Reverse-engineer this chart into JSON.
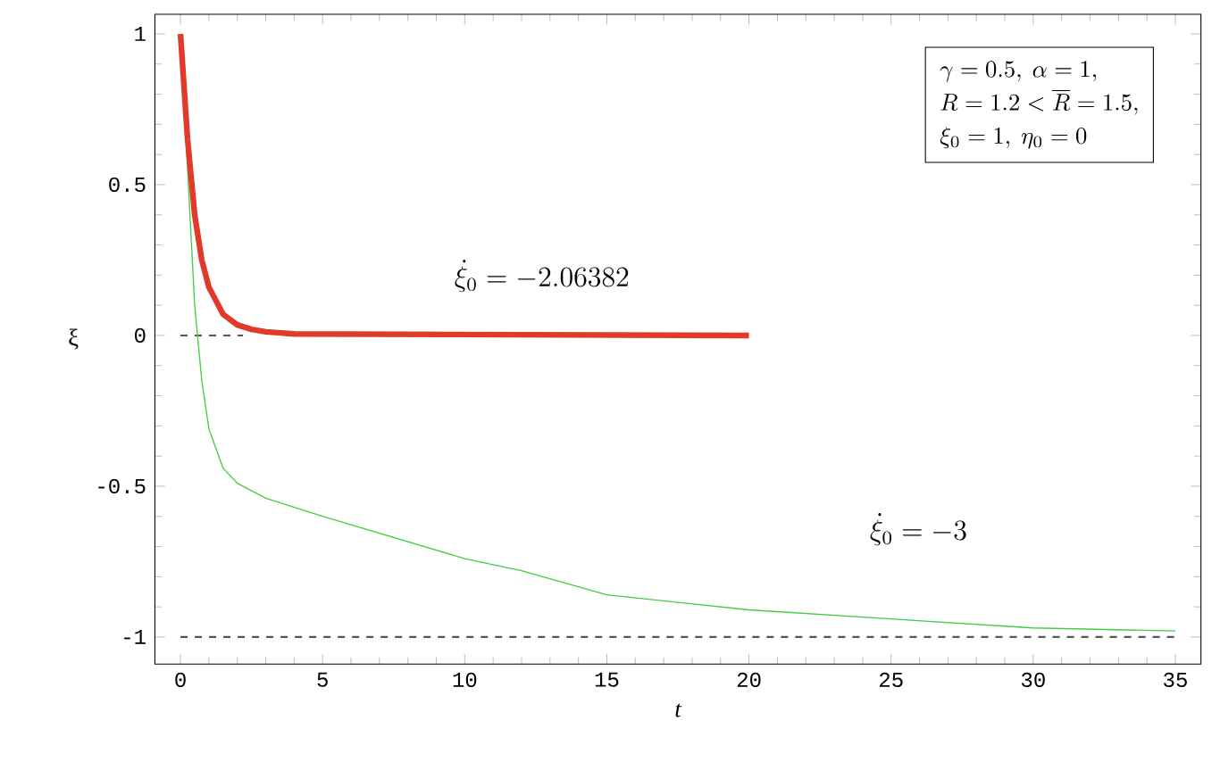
{
  "chart_data": {
    "type": "line",
    "xlabel": "t",
    "ylabel": "ξ",
    "xlim": [
      -0.9,
      35.9
    ],
    "ylim": [
      -1.09,
      1.065
    ],
    "xticks": [
      0,
      5,
      10,
      15,
      20,
      25,
      30,
      35
    ],
    "yticks": [
      -1,
      -0.5,
      0,
      0.5,
      1
    ],
    "grid": false,
    "legend": false,
    "marker": "none",
    "series": [
      {
        "line_style": "dashed",
        "color": "#555555",
        "x": [
          0,
          2.2
        ],
        "values": [
          0,
          0
        ]
      },
      {
        "line_style": "dashed",
        "color": "#555555",
        "x": [
          0,
          35
        ],
        "values": [
          -1,
          -1
        ]
      },
      {
        "line_style": "solid",
        "color": "#44cc44",
        "x": [
          0,
          0.25,
          0.5,
          0.75,
          1,
          1.5,
          2,
          3,
          5,
          7.5,
          10,
          12,
          15,
          20,
          25,
          30,
          35
        ],
        "values": [
          1,
          0.55,
          0.1,
          -0.15,
          -0.31,
          -0.44,
          -0.49,
          -0.54,
          -0.6,
          -0.67,
          -0.74,
          -0.78,
          -0.86,
          -0.91,
          -0.94,
          -0.97,
          -0.98
        ]
      },
      {
        "line_style": "solid",
        "color": "#e03a2a",
        "x": [
          0,
          0.25,
          0.5,
          0.75,
          1,
          1.5,
          2,
          2.5,
          3,
          4,
          20
        ],
        "values": [
          1,
          0.65,
          0.4,
          0.25,
          0.16,
          0.07,
          0.035,
          0.02,
          0.012,
          0.005,
          0
        ]
      }
    ],
    "annotations": [
      "\\dot{\\xi}_0 = -2.06382",
      "\\dot{\\xi}_0 = -3",
      "\\gamma = 0.5,\\ \\alpha = 1,",
      "R = 1.2 < \\overline{R} = 1.5,",
      "\\xi_0 = 1,\\ \\eta_0 = 0"
    ]
  }
}
